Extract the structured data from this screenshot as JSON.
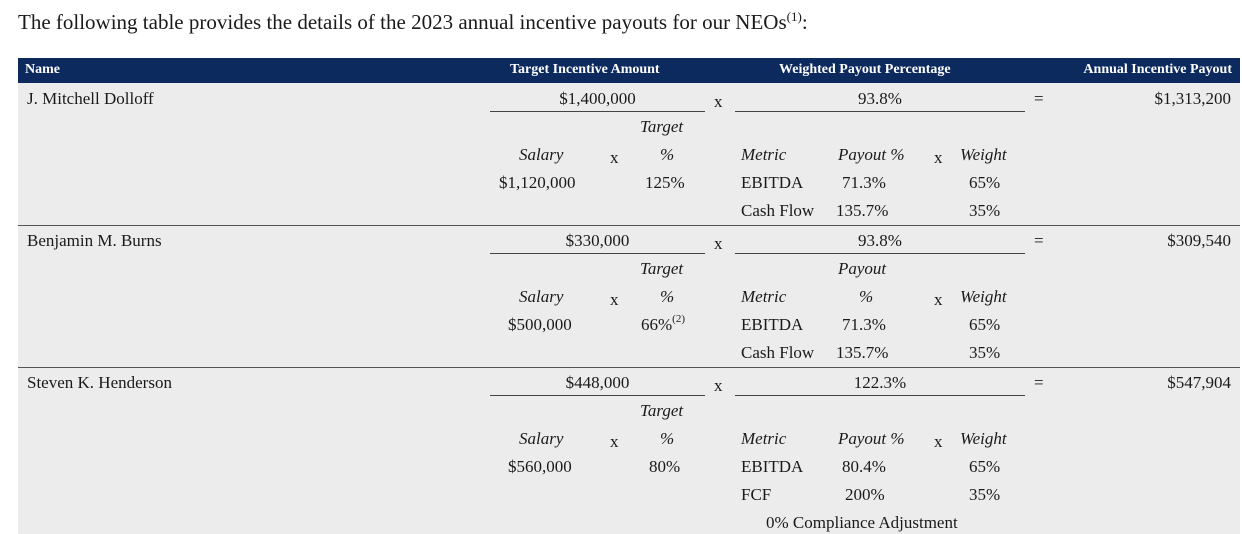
{
  "intro": {
    "text": "The following table provides the details of the 2023 annual incentive payouts for our NEOs",
    "footnote": "(1)",
    "suffix": ":"
  },
  "header": {
    "name": "Name",
    "target_amount": "Target Incentive Amount",
    "weighted_pct": "Weighted Payout Percentage",
    "annual_payout": "Annual Incentive Payout"
  },
  "symbols": {
    "times": "x",
    "equals": "="
  },
  "rows": [
    {
      "name": "J. Mitchell Dolloff",
      "target_amount": "$1,400,000",
      "weighted_pct": "93.8%",
      "payout": "$1,313,200",
      "salary_label": "Salary",
      "target_label_1": "Target",
      "target_label_2": "%",
      "salary": "$1,120,000",
      "target_pct": "125%",
      "target_fn": "",
      "metric_label": "Metric",
      "payout_label": "Payout %",
      "weight_label": "Weight",
      "metrics": [
        {
          "name": "EBITDA",
          "payout": "71.3%",
          "weight": "65%"
        },
        {
          "name": "Cash Flow",
          "payout": "135.7%",
          "weight": "35%"
        }
      ]
    },
    {
      "name": "Benjamin M. Burns",
      "target_amount": "$330,000",
      "weighted_pct": "93.8%",
      "payout": "$309,540",
      "salary_label": "Salary",
      "target_label_1": "Target",
      "target_label_2": "%",
      "salary": "$500,000",
      "target_pct": "66%",
      "target_fn": "(2)",
      "metric_label": "Metric",
      "payout_label_1": "Payout",
      "payout_label_2": "%",
      "weight_label": "Weight",
      "metrics": [
        {
          "name": "EBITDA",
          "payout": "71.3%",
          "weight": "65%"
        },
        {
          "name": "Cash Flow",
          "payout": "135.7%",
          "weight": "35%"
        }
      ]
    },
    {
      "name": "Steven K. Henderson",
      "target_amount": "$448,000",
      "weighted_pct": "122.3%",
      "payout": "$547,904",
      "salary_label": "Salary",
      "target_label_1": "Target",
      "target_label_2": "%",
      "salary": "$560,000",
      "target_pct": "80%",
      "target_fn": "",
      "metric_label": "Metric",
      "payout_label": "Payout %",
      "weight_label": "Weight",
      "metrics": [
        {
          "name": "EBITDA",
          "payout": "80.4%",
          "weight": "65%"
        },
        {
          "name": "FCF",
          "payout": "200%",
          "weight": "35%"
        }
      ],
      "adjustment": "0% Compliance Adjustment"
    }
  ]
}
